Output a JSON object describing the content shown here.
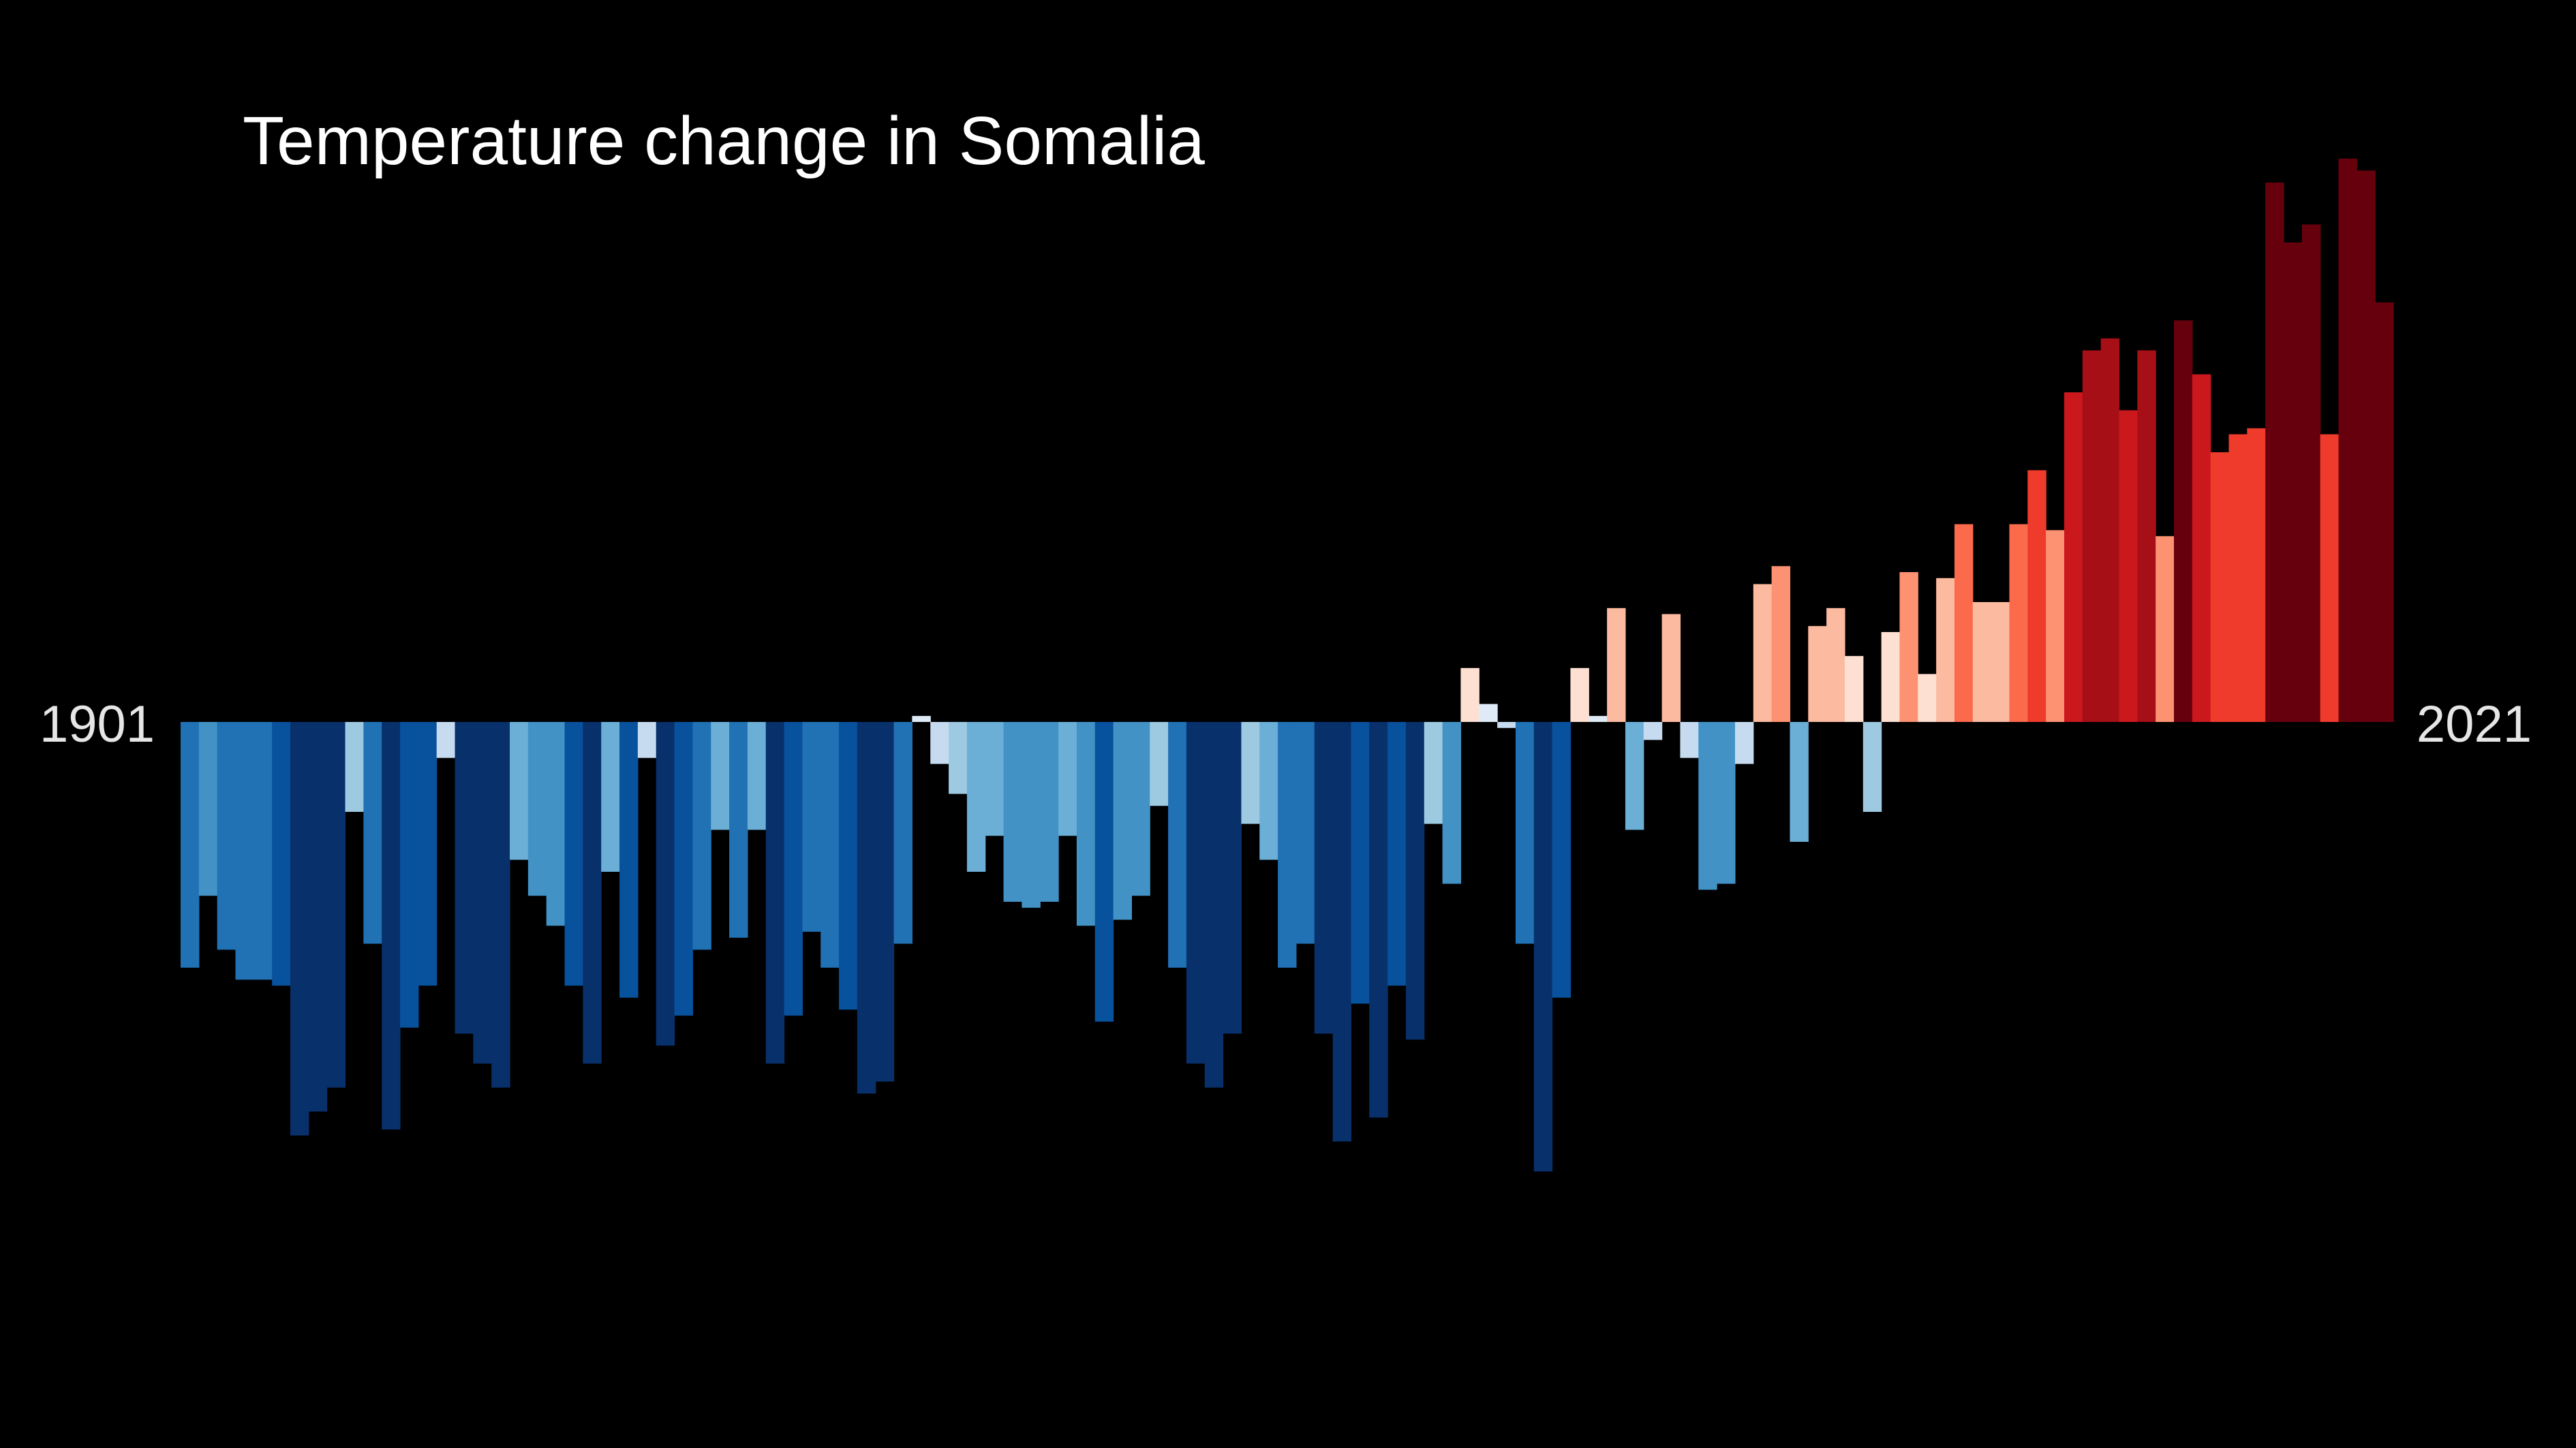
{
  "chart_data": {
    "type": "bar",
    "title": "Temperature change in Somalia",
    "start_label": "1901",
    "end_label": "2021",
    "x_start": 1901,
    "x_end": 2021,
    "ylim": [
      -0.75,
      0.95
    ],
    "grid": false,
    "legend": "none",
    "colors": {
      "background": "#000000",
      "cold_extreme": "#08306b",
      "warm_extreme": "#67000d"
    },
    "values": [
      -0.41,
      -0.29,
      -0.38,
      -0.43,
      -0.43,
      -0.44,
      -0.69,
      -0.65,
      -0.61,
      -0.15,
      -0.37,
      -0.68,
      -0.51,
      -0.44,
      -0.06,
      -0.52,
      -0.57,
      -0.61,
      -0.23,
      -0.29,
      -0.34,
      -0.44,
      -0.57,
      -0.25,
      -0.46,
      -0.06,
      -0.54,
      -0.49,
      -0.38,
      -0.18,
      -0.36,
      -0.18,
      -0.57,
      -0.49,
      -0.35,
      -0.41,
      -0.48,
      -0.62,
      -0.6,
      -0.37,
      0.01,
      -0.07,
      -0.12,
      -0.25,
      -0.19,
      -0.3,
      -0.31,
      -0.3,
      -0.19,
      -0.34,
      -0.5,
      -0.33,
      -0.29,
      -0.14,
      -0.41,
      -0.57,
      -0.61,
      -0.52,
      -0.17,
      -0.23,
      -0.41,
      -0.37,
      -0.52,
      -0.7,
      -0.47,
      -0.66,
      -0.44,
      -0.53,
      -0.17,
      -0.27,
      0.09,
      0.03,
      -0.01,
      -0.37,
      -0.75,
      -0.46,
      0.09,
      0.01,
      0.19,
      -0.18,
      -0.03,
      0.18,
      -0.06,
      -0.28,
      -0.27,
      -0.07,
      0.23,
      0.26,
      -0.2,
      0.16,
      0.19,
      0.11,
      -0.15,
      0.15,
      0.25,
      0.08,
      0.24,
      0.33,
      0.2,
      0.2,
      0.33,
      0.42,
      0.32,
      0.55,
      0.62,
      0.64,
      0.52,
      0.62,
      0.31,
      0.67,
      0.58,
      0.45,
      0.48,
      0.49,
      0.9,
      0.8,
      0.83,
      0.48,
      0.94,
      0.92,
      0.7
    ]
  }
}
